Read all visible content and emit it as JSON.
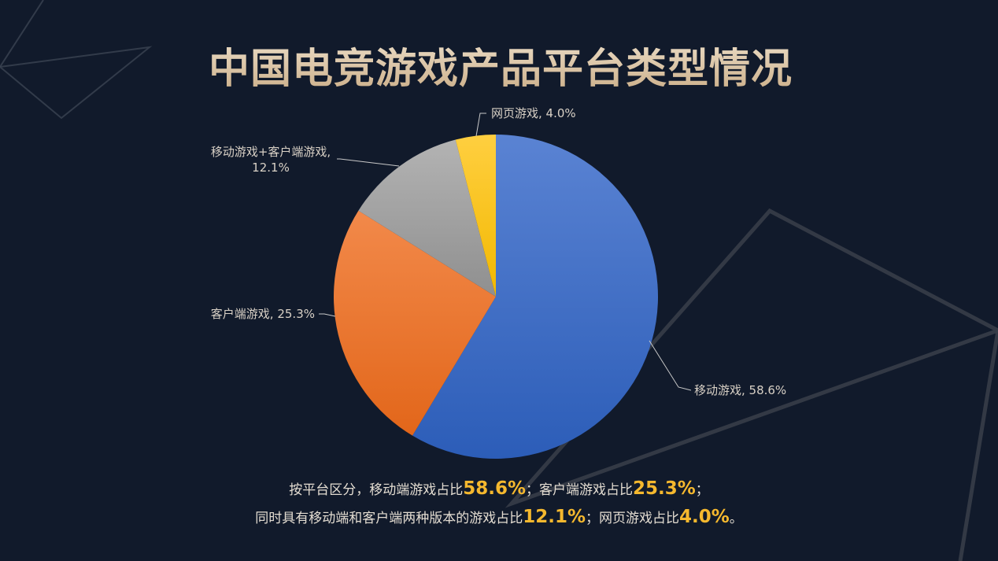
{
  "title": "中国电竞游戏产品平台类型情况",
  "chart_data": {
    "type": "pie",
    "title": "",
    "start_angle_deg": 0,
    "direction": "clockwise",
    "slices": [
      {
        "label": "移动游戏",
        "value": 58.6,
        "value_label": "58.6%",
        "display": "移动游戏, 58.6%",
        "color_top": "#5a83d3",
        "color_bottom": "#2c5db8"
      },
      {
        "label": "客户端游戏",
        "value": 25.3,
        "value_label": "25.3%",
        "display": "客户端游戏, 25.3%",
        "color_top": "#f2894a",
        "color_bottom": "#e2661a"
      },
      {
        "label": "移动游戏+客户端游戏",
        "value": 12.1,
        "value_label": "12.1%",
        "display_line1": "移动游戏+客户端游戏,",
        "display_line2": "12.1%",
        "color_top": "#b3b3b3",
        "color_bottom": "#8f8f8f"
      },
      {
        "label": "网页游戏",
        "value": 4.0,
        "value_label": "4.0%",
        "display": "网页游戏, 4.0%",
        "color_top": "#ffcf40",
        "color_bottom": "#f2b800"
      }
    ],
    "legend": "none",
    "label_style": "outside with leader lines"
  },
  "summary": {
    "line1": {
      "t1": "按平台区分，移动端游戏占比",
      "v1": "58.6%",
      "t2": "；客户端游戏占比",
      "v2": "25.3%",
      "t3": "；"
    },
    "line2": {
      "t1": "同时具有移动端和客户端两种版本的游戏占比",
      "v1": "12.1%",
      "t2": "；网页游戏占比",
      "v2": "4.0%",
      "t3": "。"
    }
  },
  "colors": {
    "background": "#111a2b",
    "title": "#d9bf9c",
    "highlight": "#f5b82e",
    "label_text": "#d9d1c6"
  }
}
